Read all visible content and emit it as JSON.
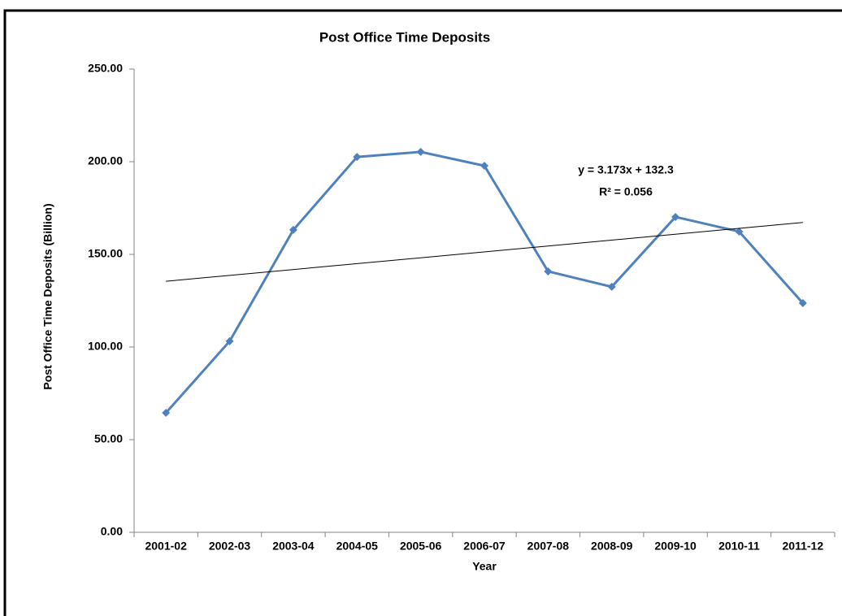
{
  "chart_data": {
    "type": "line",
    "title": "Post Office Time Deposits",
    "x_label": "Year",
    "y_label": "Post Office Time Deposits (Billion)",
    "categories": [
      "2001-02",
      "2002-03",
      "2003-04",
      "2004-05",
      "2005-06",
      "2006-07",
      "2007-08",
      "2008-09",
      "2009-10",
      "2010-11",
      "2011-12"
    ],
    "series": [
      {
        "name": "Post Office Time Deposits",
        "color": "#4f81bd",
        "values": [
          64.5,
          103.1,
          163.2,
          202.6,
          205.3,
          197.8,
          140.8,
          132.5,
          170.2,
          162.3,
          123.7
        ]
      }
    ],
    "trendline": {
      "slope": 3.173,
      "intercept": 132.3,
      "r2": 0.056,
      "color": "#000000",
      "equation_label": "y = 3.173x + 132.3",
      "r2_label": "R² = 0.056"
    },
    "ylim": [
      0,
      250
    ],
    "yticks": [
      {
        "value": 0,
        "label": "0.00"
      },
      {
        "value": 50,
        "label": "50.00"
      },
      {
        "value": 100,
        "label": "100.00"
      },
      {
        "value": 150,
        "label": "150.00"
      },
      {
        "value": 200,
        "label": "200.00"
      },
      {
        "value": 250,
        "label": "250.00"
      }
    ],
    "grid": false,
    "legend": false
  }
}
